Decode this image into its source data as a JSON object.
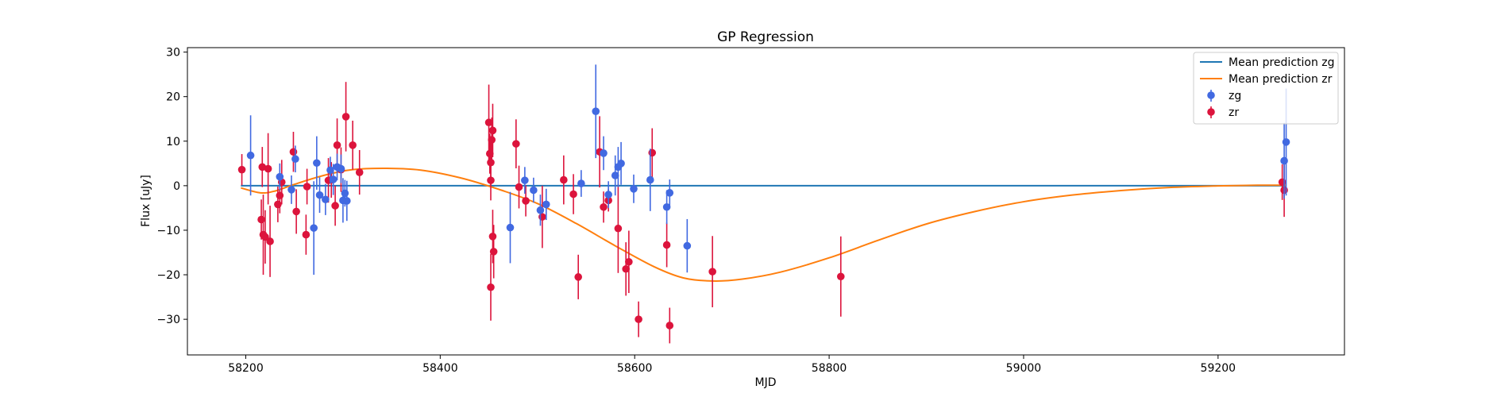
{
  "chart_data": {
    "type": "scatter",
    "title": "GP Regression",
    "xlabel": "MJD",
    "ylabel": "Flux [uJy]",
    "xlim": [
      58140,
      59330
    ],
    "ylim": [
      -38,
      31
    ],
    "xticks": [
      58200,
      58400,
      58600,
      58800,
      59000,
      59200
    ],
    "yticks": [
      -30,
      -20,
      -10,
      0,
      10,
      20,
      30
    ],
    "grid": false,
    "legend_position": "top-right",
    "colors": {
      "zg_line": "#1f77b4",
      "zr_line": "#ff7f0e",
      "zg_points": "#4169e1",
      "zr_points": "#dc143c"
    },
    "lines": [
      {
        "name": "Mean prediction zg",
        "x": [
          58195,
          59270
        ],
        "y": [
          0,
          0
        ]
      },
      {
        "name": "Mean prediction zr",
        "x": [
          58195,
          58215,
          58230,
          58250,
          58280,
          58310,
          58345,
          58380,
          58420,
          58460,
          58500,
          58540,
          58580,
          58620,
          58650,
          58680,
          58710,
          58750,
          58800,
          58850,
          58900,
          58950,
          59000,
          59050,
          59100,
          59150,
          59200,
          59240,
          59270
        ],
        "y": [
          -0.5,
          -1.6,
          -1.2,
          0.3,
          2.3,
          3.6,
          3.9,
          3.5,
          1.8,
          -0.8,
          -4.0,
          -8.5,
          -13.5,
          -18.2,
          -20.7,
          -21.4,
          -21.0,
          -19.4,
          -16.2,
          -12.3,
          -8.6,
          -5.8,
          -3.6,
          -2.1,
          -1.1,
          -0.4,
          -0.05,
          0.1,
          0.1
        ]
      }
    ],
    "series": [
      {
        "name": "zg",
        "points": [
          {
            "x": 58205,
            "y": 6.8,
            "err": 9.0
          },
          {
            "x": 58235,
            "y": 2.0,
            "err": 3.0
          },
          {
            "x": 58247,
            "y": -0.9,
            "err": 3.2
          },
          {
            "x": 58251,
            "y": 6.0,
            "err": 3.0
          },
          {
            "x": 58270,
            "y": -9.5,
            "err": 10.5
          },
          {
            "x": 58273,
            "y": 5.1,
            "err": 6.0
          },
          {
            "x": 58276,
            "y": -2.1,
            "err": 4.0
          },
          {
            "x": 58282,
            "y": -3.1,
            "err": 3.5
          },
          {
            "x": 58287,
            "y": 3.5,
            "err": 3.0
          },
          {
            "x": 58290,
            "y": 1.4,
            "err": 3.5
          },
          {
            "x": 58294,
            "y": 4.2,
            "err": 3.0
          },
          {
            "x": 58298,
            "y": 3.8,
            "err": 3.2
          },
          {
            "x": 58300,
            "y": -3.3,
            "err": 5.0
          },
          {
            "x": 58302,
            "y": -1.7,
            "err": 3.0
          },
          {
            "x": 58304,
            "y": -3.4,
            "err": 4.5
          },
          {
            "x": 58472,
            "y": -9.4,
            "err": 8.0
          },
          {
            "x": 58487,
            "y": 1.2,
            "err": 3.0
          },
          {
            "x": 58496,
            "y": -1.0,
            "err": 2.8
          },
          {
            "x": 58503,
            "y": -5.5,
            "err": 3.5
          },
          {
            "x": 58509,
            "y": -4.2,
            "err": 3.5
          },
          {
            "x": 58545,
            "y": 0.5,
            "err": 3.0
          },
          {
            "x": 58560,
            "y": 16.7,
            "err": 10.5
          },
          {
            "x": 58568,
            "y": 7.3,
            "err": 3.8
          },
          {
            "x": 58573,
            "y": -2.0,
            "err": 3.0
          },
          {
            "x": 58580,
            "y": 2.3,
            "err": 4.5
          },
          {
            "x": 58583,
            "y": 4.2,
            "err": 4.5
          },
          {
            "x": 58586,
            "y": 5.0,
            "err": 4.8
          },
          {
            "x": 58599,
            "y": -0.7,
            "err": 3.2
          },
          {
            "x": 58616,
            "y": 1.3,
            "err": 7.0
          },
          {
            "x": 58633,
            "y": -4.8,
            "err": 3.8
          },
          {
            "x": 58636,
            "y": -1.6,
            "err": 3.0
          },
          {
            "x": 58654,
            "y": -13.5,
            "err": 6.0
          },
          {
            "x": 59268,
            "y": 5.6,
            "err": 8.5
          },
          {
            "x": 59270,
            "y": 9.8,
            "err": 12.0
          }
        ]
      },
      {
        "name": "zr",
        "points": [
          {
            "x": 58196,
            "y": 3.6,
            "err": 3.5
          },
          {
            "x": 58216,
            "y": -7.6,
            "err": 4.5
          },
          {
            "x": 58217,
            "y": 4.2,
            "err": 4.5
          },
          {
            "x": 58218,
            "y": -11.0,
            "err": 9.0
          },
          {
            "x": 58220,
            "y": -11.5,
            "err": 6.0
          },
          {
            "x": 58223,
            "y": 3.8,
            "err": 8.0
          },
          {
            "x": 58225,
            "y": -12.5,
            "err": 8.0
          },
          {
            "x": 58233,
            "y": -4.2,
            "err": 4.0
          },
          {
            "x": 58235,
            "y": -2.2,
            "err": 4.0
          },
          {
            "x": 58237,
            "y": 0.8,
            "err": 5.0
          },
          {
            "x": 58249,
            "y": 7.6,
            "err": 4.5
          },
          {
            "x": 58252,
            "y": -5.8,
            "err": 5.0
          },
          {
            "x": 58262,
            "y": -11.0,
            "err": 4.5
          },
          {
            "x": 58263,
            "y": -0.2,
            "err": 4.0
          },
          {
            "x": 58285,
            "y": 1.2,
            "err": 5.0
          },
          {
            "x": 58288,
            "y": 1.3,
            "err": 4.0
          },
          {
            "x": 58292,
            "y": -4.5,
            "err": 4.5
          },
          {
            "x": 58294,
            "y": 9.1,
            "err": 6.0
          },
          {
            "x": 58298,
            "y": 3.6,
            "err": 5.0
          },
          {
            "x": 58303,
            "y": 15.5,
            "err": 7.8
          },
          {
            "x": 58310,
            "y": 9.1,
            "err": 5.5
          },
          {
            "x": 58317,
            "y": 3.0,
            "err": 5.0
          },
          {
            "x": 58450,
            "y": 14.2,
            "err": 8.5
          },
          {
            "x": 58451,
            "y": 7.2,
            "err": 4.5
          },
          {
            "x": 58452,
            "y": 5.2,
            "err": 5.0
          },
          {
            "x": 58452,
            "y": 1.2,
            "err": 4.5
          },
          {
            "x": 58452,
            "y": -22.8,
            "err": 7.5
          },
          {
            "x": 58453,
            "y": 10.3,
            "err": 5.0
          },
          {
            "x": 58454,
            "y": 12.4,
            "err": 6.0
          },
          {
            "x": 58454,
            "y": -11.4,
            "err": 6.0
          },
          {
            "x": 58455,
            "y": -14.8,
            "err": 6.0
          },
          {
            "x": 58478,
            "y": 9.4,
            "err": 5.5
          },
          {
            "x": 58481,
            "y": -0.3,
            "err": 4.8
          },
          {
            "x": 58488,
            "y": -3.4,
            "err": 3.5
          },
          {
            "x": 58505,
            "y": -7.0,
            "err": 7.0
          },
          {
            "x": 58527,
            "y": 1.3,
            "err": 5.5
          },
          {
            "x": 58537,
            "y": -1.9,
            "err": 4.5
          },
          {
            "x": 58542,
            "y": -20.5,
            "err": 5.0
          },
          {
            "x": 58564,
            "y": 7.6,
            "err": 8.0
          },
          {
            "x": 58568,
            "y": -4.8,
            "err": 3.5
          },
          {
            "x": 58573,
            "y": -3.3,
            "err": 2.5
          },
          {
            "x": 58583,
            "y": -9.6,
            "err": 10.0
          },
          {
            "x": 58591,
            "y": -18.7,
            "err": 6.0
          },
          {
            "x": 58594,
            "y": -17.1,
            "err": 7.0
          },
          {
            "x": 58604,
            "y": -30.0,
            "err": 4.0
          },
          {
            "x": 58618,
            "y": 7.4,
            "err": 5.5
          },
          {
            "x": 58633,
            "y": -13.3,
            "err": 5.0
          },
          {
            "x": 58636,
            "y": -31.4,
            "err": 4.0
          },
          {
            "x": 58680,
            "y": -19.3,
            "err": 8.0
          },
          {
            "x": 58812,
            "y": -20.4,
            "err": 9.0
          },
          {
            "x": 59266,
            "y": 0.8,
            "err": 4.0
          },
          {
            "x": 59268,
            "y": -1.0,
            "err": 6.0
          }
        ]
      }
    ],
    "legend": {
      "entries": [
        {
          "label": "Mean prediction zg",
          "kind": "line",
          "color": "#1f77b4"
        },
        {
          "label": "Mean prediction zr",
          "kind": "line",
          "color": "#ff7f0e"
        },
        {
          "label": "zg",
          "kind": "errorbar-point",
          "color": "#4169e1"
        },
        {
          "label": "zr",
          "kind": "errorbar-point",
          "color": "#dc143c"
        }
      ]
    }
  }
}
